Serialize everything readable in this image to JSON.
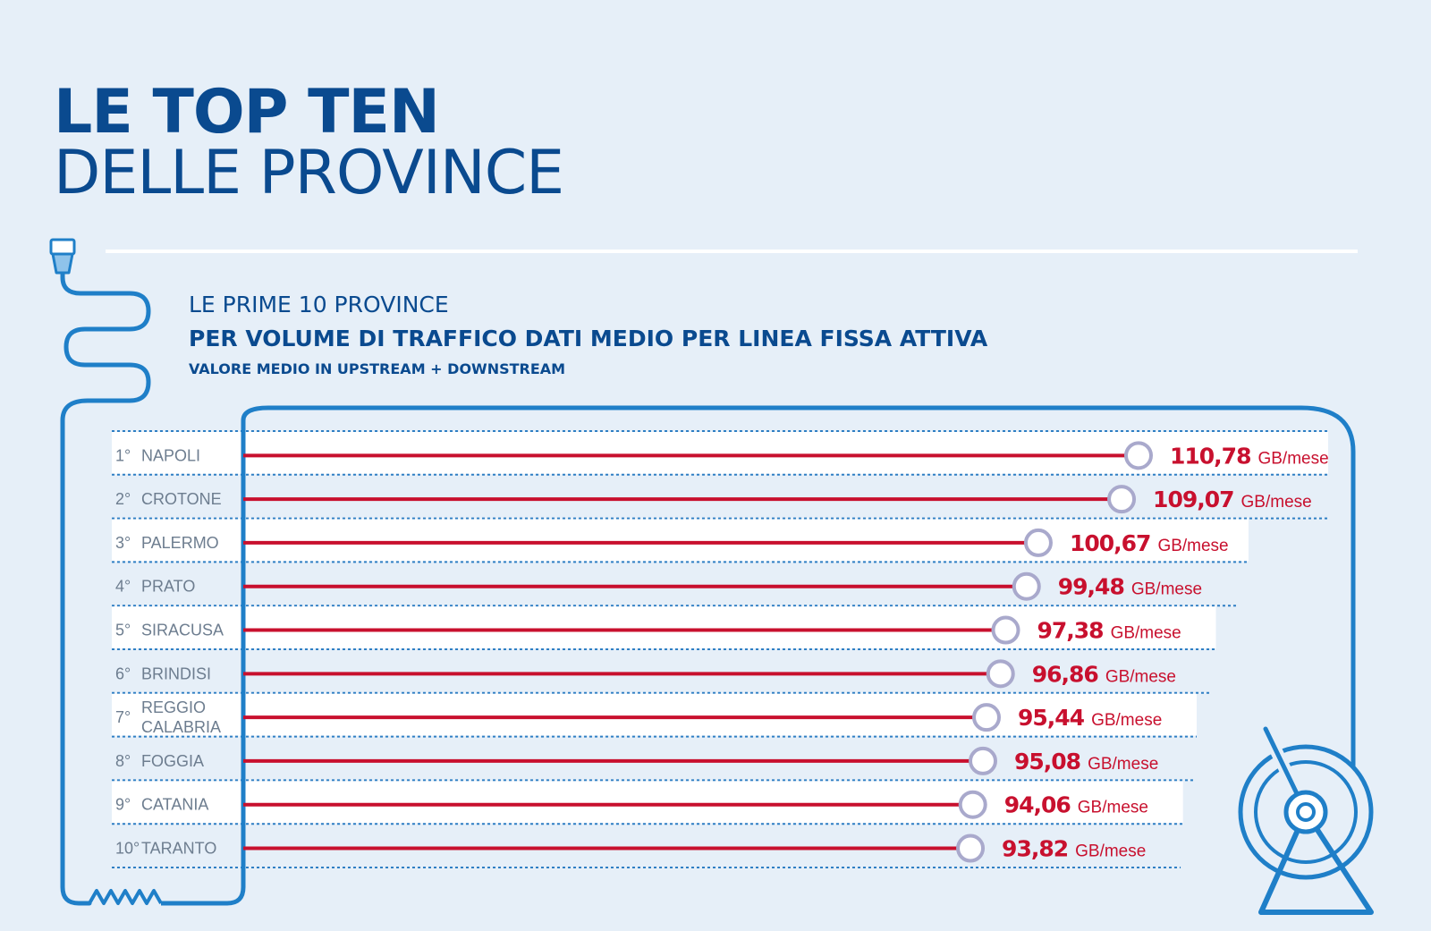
{
  "header": {
    "title_line1": "LE TOP TEN",
    "title_line2": "DELLE PROVINCE"
  },
  "chart_data": {
    "type": "bar",
    "orientation": "horizontal",
    "title": "LE PRIME 10 PROVINCE",
    "subtitle": "PER VOLUME DI TRAFFICO DATI MEDIO PER LINEA FISSA ATTIVA",
    "note": "VALORE MEDIO IN UPSTREAM + DOWNSTREAM",
    "unit": "GB/mese",
    "categories": [
      {
        "rank": "1°",
        "name": "NAPOLI"
      },
      {
        "rank": "2°",
        "name": "CROTONE"
      },
      {
        "rank": "3°",
        "name": "PALERMO"
      },
      {
        "rank": "4°",
        "name": "PRATO"
      },
      {
        "rank": "5°",
        "name": "SIRACUSA"
      },
      {
        "rank": "6°",
        "name": "BRINDISI"
      },
      {
        "rank": "7°",
        "name": "REGGIO\nCALABRIA"
      },
      {
        "rank": "8°",
        "name": "FOGGIA"
      },
      {
        "rank": "9°",
        "name": "CATANIA"
      },
      {
        "rank": "10°",
        "name": "TARANTO"
      }
    ],
    "values": [
      110.78,
      109.07,
      100.67,
      99.48,
      97.38,
      96.86,
      95.44,
      95.08,
      94.06,
      93.82
    ],
    "value_labels": [
      "110,78",
      "109,07",
      "100,67",
      "99,48",
      "97,38",
      "96,86",
      "95,44",
      "95,08",
      "94,06",
      "93,82"
    ],
    "colors": {
      "bar": "#c8102e",
      "knob": "#a9a9cc",
      "cable": "#1f7fc8",
      "title": "#0a4a8f",
      "label": "#6d7d8f"
    }
  }
}
